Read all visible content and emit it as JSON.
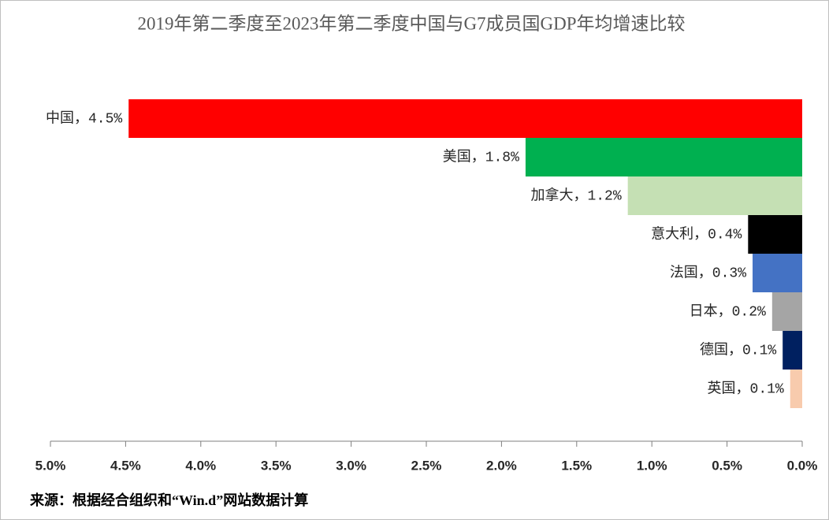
{
  "chart_data": {
    "type": "hbar",
    "title": "2019年第二季度至2023年第二季度中国与G7成员国GDP年均增速比较",
    "values": [
      4.48,
      1.84,
      1.16,
      0.36,
      0.33,
      0.2,
      0.13,
      0.08
    ],
    "value_labels": [
      "中国，4.5%",
      "美国，1.8%",
      "加拿大，1.2%",
      "意大利，0.4%",
      "法国，0.3%",
      "日本，0.2%",
      "德国，0.1%",
      "英国，0.1%"
    ],
    "colors": [
      "#ff0000",
      "#00b050",
      "#c5e0b4",
      "#000000",
      "#4472c4",
      "#a5a5a5",
      "#002060",
      "#f8cbad"
    ],
    "xlim": [
      0,
      5
    ],
    "x_reversed": true,
    "xticks": [
      {
        "value": 5,
        "label": "5.0%"
      },
      {
        "value": 4.5,
        "label": "4.5%"
      },
      {
        "value": 4,
        "label": "4.0%"
      },
      {
        "value": 3.5,
        "label": "3.5%"
      },
      {
        "value": 3,
        "label": "3.0%"
      },
      {
        "value": 2.5,
        "label": "2.5%"
      },
      {
        "value": 2,
        "label": "2.0%"
      },
      {
        "value": 1.5,
        "label": "1.5%"
      },
      {
        "value": 1,
        "label": "1.0%"
      },
      {
        "value": 0.5,
        "label": "0.5%"
      },
      {
        "value": 0,
        "label": "0.0%"
      }
    ],
    "source": "来源：根据经合组织和“Win.d”网站数据计算"
  }
}
